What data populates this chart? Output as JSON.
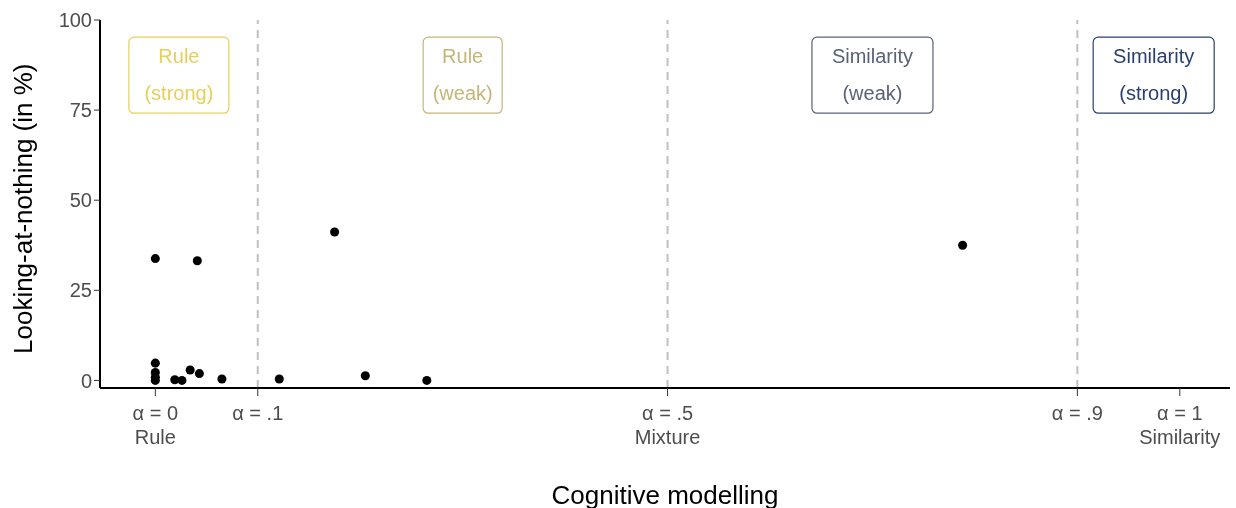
{
  "chart_data": {
    "type": "scatter",
    "xlabel": "Cognitive modelling",
    "ylabel": "Looking-at-nothing (in %)",
    "xlim": [
      -0.054,
      1.049
    ],
    "ylim": [
      -2.1,
      100
    ],
    "xticks": [
      {
        "value": 0,
        "label": "α = 0\nRule"
      },
      {
        "value": 0.1,
        "label": "α = .1"
      },
      {
        "value": 0.5,
        "label": "α = .5\nMixture"
      },
      {
        "value": 0.9,
        "label": "α = .9"
      },
      {
        "value": 1,
        "label": "α = 1\nSimilarity"
      }
    ],
    "yticks": [
      0,
      25,
      50,
      75,
      100
    ],
    "series": [
      {
        "color": "#000000",
        "x": [
          0,
          0.041,
          0.175,
          0.788,
          0,
          0,
          0,
          0,
          0.019,
          0.026,
          0.034,
          0.043,
          0.065,
          0.121,
          0.205,
          0.265
        ],
        "values": [
          33.8,
          33.2,
          41.2,
          37.5,
          4.8,
          2.2,
          0.9,
          0,
          0.2,
          0,
          2.9,
          1.9,
          0.4,
          0.4,
          1.3,
          0
        ]
      }
    ],
    "marker": "circle",
    "grid": false,
    "ref_lines": [
      {
        "axis": "x",
        "value": 0.1,
        "color": "#c0c0c0",
        "line_style": "dashed"
      },
      {
        "axis": "x",
        "value": 0.5,
        "color": "#c0c0c0",
        "line_style": "dashed"
      },
      {
        "axis": "x",
        "value": 0.9,
        "color": "#c0c0c0",
        "line_style": "dashed"
      }
    ],
    "annotations": [
      "Rule\n(strong)",
      "Rule\n(weak)",
      "Similarity\n(weak)",
      "Similarity\n(strong)"
    ]
  }
}
